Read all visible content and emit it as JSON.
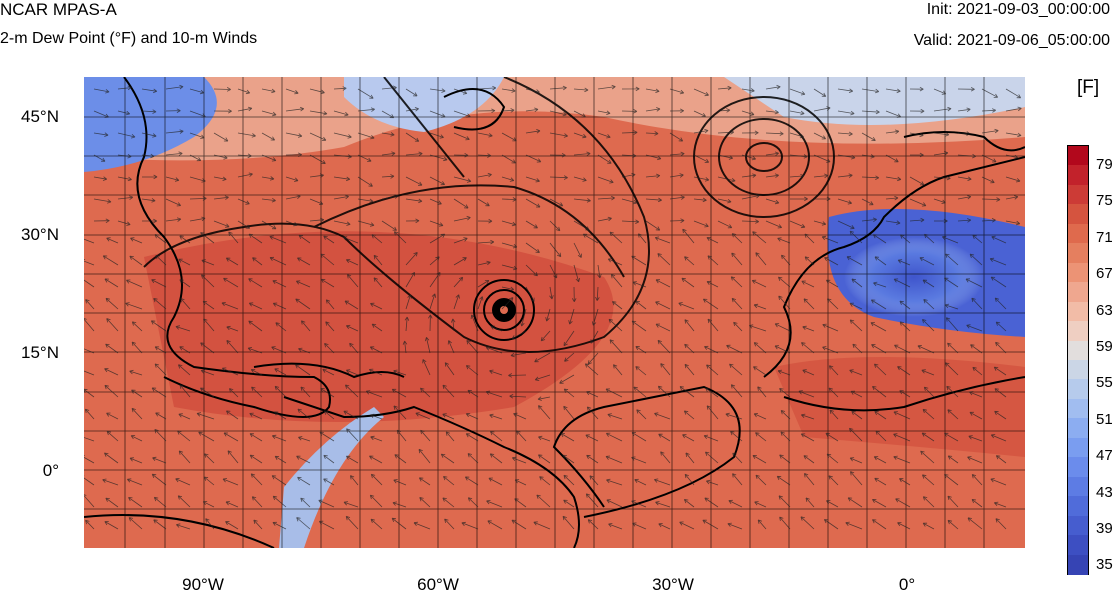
{
  "header": {
    "model": "NCAR MPAS-A",
    "field": "2-m Dew Point (°F) and 10-m Winds",
    "init": "Init: 2021-09-03_00:00:00",
    "valid": "Valid: 2021-09-06_05:00:00"
  },
  "colorbar": {
    "unit": "[F]",
    "labels": [
      "79",
      "75",
      "71",
      "67",
      "63",
      "59",
      "55",
      "51",
      "47",
      "43",
      "39",
      "35"
    ],
    "colors": [
      "#b2081c",
      "#c2222b",
      "#cc3b36",
      "#d5543f",
      "#df6a4d",
      "#e57f5f",
      "#ec9375",
      "#efa78f",
      "#f2bca7",
      "#efcfc2",
      "#e2dedd",
      "#cbd6e6",
      "#b6cbec",
      "#a1bdf0",
      "#8cadf1",
      "#7a9df0",
      "#6b8cec",
      "#5d7ce4",
      "#506cda",
      "#465dcf",
      "#3d4fc2",
      "#3644b4"
    ]
  },
  "axes": {
    "lat_labels": [
      "45°N",
      "30°N",
      "15°N",
      "0°"
    ],
    "lon_labels": [
      "90°W",
      "60°W",
      "30°W",
      "0°"
    ]
  },
  "map": {
    "land_color_dry": "#4a6ad8",
    "ocean_color_warm": "#e0644a",
    "storm_label": "hurricane-eye"
  }
}
